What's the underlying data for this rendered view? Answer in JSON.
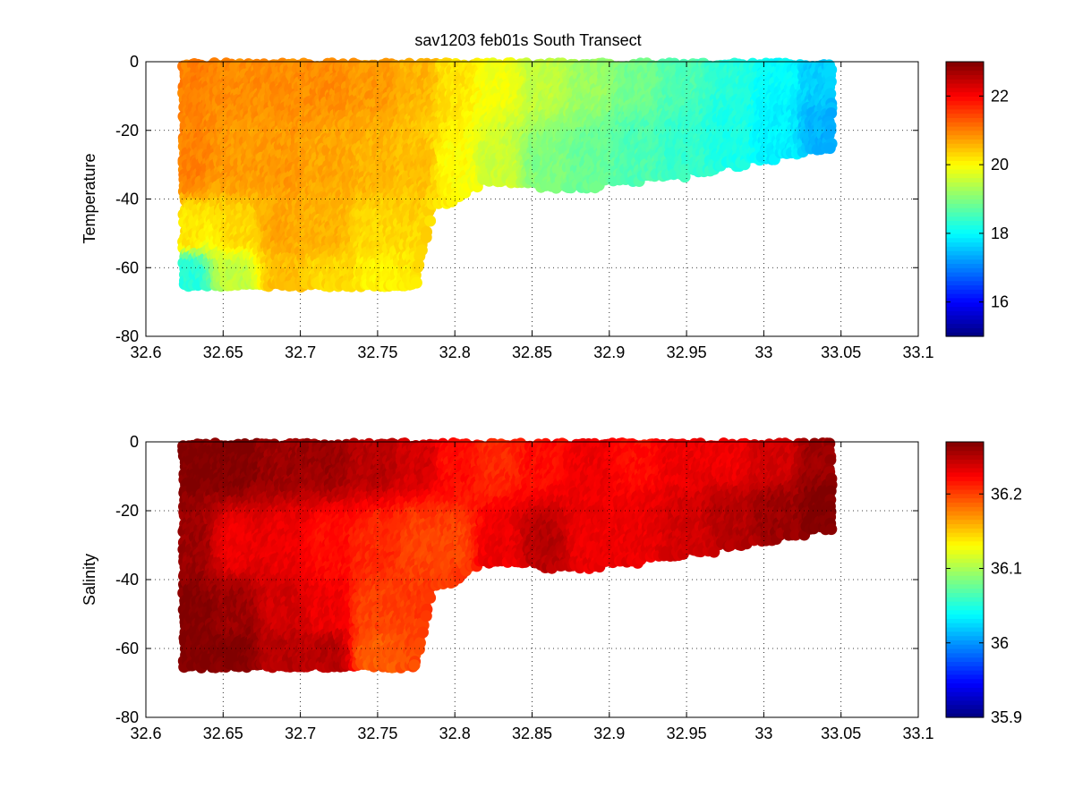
{
  "chart_data": [
    {
      "type": "scatter",
      "title": "sav1203 feb01s   South Transect",
      "ylabel": "Temperature",
      "xlabel": "",
      "xlim": [
        32.6,
        33.1
      ],
      "ylim": [
        -80,
        0
      ],
      "xticks": [
        "32.6",
        "32.65",
        "32.7",
        "32.75",
        "32.8",
        "32.85",
        "32.9",
        "32.95",
        "33",
        "33.05",
        "33.1"
      ],
      "yticks": [
        "0",
        "-20",
        "-40",
        "-60",
        "-80"
      ],
      "grid": true,
      "colormap": "jet",
      "clim": [
        15,
        23
      ],
      "colorbar_ticks": [
        "22",
        "20",
        "18",
        "16"
      ],
      "bottom_depth_profile": [
        [
          32.625,
          -66
        ],
        [
          32.66,
          -66.5
        ],
        [
          32.7,
          -66.5
        ],
        [
          32.75,
          -66.5
        ],
        [
          32.775,
          -66
        ],
        [
          32.785,
          -42
        ],
        [
          32.8,
          -41
        ],
        [
          32.815,
          -36
        ],
        [
          32.85,
          -36
        ],
        [
          32.88,
          -37
        ],
        [
          32.95,
          -33
        ],
        [
          33.0,
          -29
        ],
        [
          33.045,
          -25
        ]
      ],
      "field_samples": [
        {
          "x": 32.63,
          "y": -5,
          "value": 21.0
        },
        {
          "x": 32.63,
          "y": -30,
          "value": 21.0
        },
        {
          "x": 32.63,
          "y": -50,
          "value": 20.2
        },
        {
          "x": 32.63,
          "y": -62,
          "value": 18.3
        },
        {
          "x": 32.66,
          "y": -5,
          "value": 20.9
        },
        {
          "x": 32.66,
          "y": -30,
          "value": 20.8
        },
        {
          "x": 32.66,
          "y": -50,
          "value": 20.3
        },
        {
          "x": 32.66,
          "y": -62,
          "value": 19.5
        },
        {
          "x": 32.69,
          "y": -5,
          "value": 20.9
        },
        {
          "x": 32.69,
          "y": -30,
          "value": 20.8
        },
        {
          "x": 32.69,
          "y": -50,
          "value": 20.7
        },
        {
          "x": 32.69,
          "y": -62,
          "value": 20.5
        },
        {
          "x": 32.72,
          "y": -5,
          "value": 20.9
        },
        {
          "x": 32.72,
          "y": -30,
          "value": 20.7
        },
        {
          "x": 32.72,
          "y": -50,
          "value": 20.6
        },
        {
          "x": 32.72,
          "y": -62,
          "value": 20.3
        },
        {
          "x": 32.75,
          "y": -5,
          "value": 20.8
        },
        {
          "x": 32.75,
          "y": -30,
          "value": 20.6
        },
        {
          "x": 32.75,
          "y": -50,
          "value": 20.3
        },
        {
          "x": 32.75,
          "y": -62,
          "value": 20.1
        },
        {
          "x": 32.78,
          "y": -5,
          "value": 20.6
        },
        {
          "x": 32.78,
          "y": -30,
          "value": 20.5
        },
        {
          "x": 32.8,
          "y": -5,
          "value": 20.2
        },
        {
          "x": 32.8,
          "y": -30,
          "value": 20.0
        },
        {
          "x": 32.83,
          "y": -5,
          "value": 19.9
        },
        {
          "x": 32.83,
          "y": -30,
          "value": 19.6
        },
        {
          "x": 32.86,
          "y": -5,
          "value": 19.5
        },
        {
          "x": 32.86,
          "y": -30,
          "value": 19.0
        },
        {
          "x": 32.89,
          "y": -5,
          "value": 19.2
        },
        {
          "x": 32.89,
          "y": -30,
          "value": 18.8
        },
        {
          "x": 32.92,
          "y": -5,
          "value": 18.9
        },
        {
          "x": 32.92,
          "y": -25,
          "value": 18.6
        },
        {
          "x": 32.95,
          "y": -5,
          "value": 18.6
        },
        {
          "x": 32.95,
          "y": -25,
          "value": 18.4
        },
        {
          "x": 32.98,
          "y": -5,
          "value": 18.3
        },
        {
          "x": 32.98,
          "y": -22,
          "value": 18.2
        },
        {
          "x": 33.01,
          "y": -5,
          "value": 18.0
        },
        {
          "x": 33.01,
          "y": -22,
          "value": 17.9
        },
        {
          "x": 33.04,
          "y": -5,
          "value": 17.6
        },
        {
          "x": 33.04,
          "y": -20,
          "value": 17.4
        }
      ]
    },
    {
      "type": "scatter",
      "title": "",
      "ylabel": "Salinity",
      "xlabel": "",
      "xlim": [
        32.6,
        33.1
      ],
      "ylim": [
        -80,
        0
      ],
      "xticks": [
        "32.6",
        "32.65",
        "32.7",
        "32.75",
        "32.8",
        "32.85",
        "32.9",
        "32.95",
        "33",
        "33.05",
        "33.1"
      ],
      "yticks": [
        "0",
        "-20",
        "-40",
        "-60",
        "-80"
      ],
      "grid": true,
      "colormap": "jet",
      "clim": [
        35.9,
        36.27
      ],
      "colorbar_ticks": [
        "36.2",
        "36.1",
        "36",
        "35.9"
      ],
      "bottom_depth_profile": [
        [
          32.625,
          -66
        ],
        [
          32.66,
          -66.5
        ],
        [
          32.7,
          -66.5
        ],
        [
          32.75,
          -66.5
        ],
        [
          32.775,
          -66
        ],
        [
          32.785,
          -42
        ],
        [
          32.8,
          -41
        ],
        [
          32.815,
          -36
        ],
        [
          32.85,
          -36
        ],
        [
          32.88,
          -37
        ],
        [
          32.95,
          -33
        ],
        [
          33.0,
          -29
        ],
        [
          33.045,
          -25
        ]
      ],
      "field_samples": [
        {
          "x": 32.63,
          "y": -5,
          "value": 36.27
        },
        {
          "x": 32.63,
          "y": -30,
          "value": 36.26
        },
        {
          "x": 32.63,
          "y": -50,
          "value": 36.27
        },
        {
          "x": 32.63,
          "y": -62,
          "value": 36.27
        },
        {
          "x": 32.66,
          "y": -5,
          "value": 36.27
        },
        {
          "x": 32.66,
          "y": -30,
          "value": 36.23
        },
        {
          "x": 32.66,
          "y": -50,
          "value": 36.26
        },
        {
          "x": 32.66,
          "y": -62,
          "value": 36.27
        },
        {
          "x": 32.69,
          "y": -5,
          "value": 36.26
        },
        {
          "x": 32.69,
          "y": -30,
          "value": 36.23
        },
        {
          "x": 32.69,
          "y": -50,
          "value": 36.24
        },
        {
          "x": 32.69,
          "y": -62,
          "value": 36.25
        },
        {
          "x": 32.72,
          "y": -5,
          "value": 36.26
        },
        {
          "x": 32.72,
          "y": -30,
          "value": 36.22
        },
        {
          "x": 32.72,
          "y": -50,
          "value": 36.23
        },
        {
          "x": 32.72,
          "y": -62,
          "value": 36.25
        },
        {
          "x": 32.75,
          "y": -5,
          "value": 36.25
        },
        {
          "x": 32.75,
          "y": -30,
          "value": 36.21
        },
        {
          "x": 32.75,
          "y": -50,
          "value": 36.2
        },
        {
          "x": 32.75,
          "y": -62,
          "value": 36.19
        },
        {
          "x": 32.78,
          "y": -5,
          "value": 36.24
        },
        {
          "x": 32.78,
          "y": -30,
          "value": 36.2
        },
        {
          "x": 32.8,
          "y": -5,
          "value": 36.22
        },
        {
          "x": 32.8,
          "y": -30,
          "value": 36.2
        },
        {
          "x": 32.83,
          "y": -5,
          "value": 36.21
        },
        {
          "x": 32.83,
          "y": -30,
          "value": 36.23
        },
        {
          "x": 32.86,
          "y": -5,
          "value": 36.22
        },
        {
          "x": 32.86,
          "y": -30,
          "value": 36.25
        },
        {
          "x": 32.89,
          "y": -5,
          "value": 36.23
        },
        {
          "x": 32.89,
          "y": -30,
          "value": 36.23
        },
        {
          "x": 32.92,
          "y": -5,
          "value": 36.22
        },
        {
          "x": 32.92,
          "y": -25,
          "value": 36.23
        },
        {
          "x": 32.95,
          "y": -5,
          "value": 36.23
        },
        {
          "x": 32.95,
          "y": -25,
          "value": 36.24
        },
        {
          "x": 32.98,
          "y": -5,
          "value": 36.23
        },
        {
          "x": 32.98,
          "y": -22,
          "value": 36.25
        },
        {
          "x": 33.01,
          "y": -5,
          "value": 36.24
        },
        {
          "x": 33.01,
          "y": -22,
          "value": 36.26
        },
        {
          "x": 33.04,
          "y": -5,
          "value": 36.26
        },
        {
          "x": 33.04,
          "y": -20,
          "value": 36.27
        }
      ]
    }
  ]
}
